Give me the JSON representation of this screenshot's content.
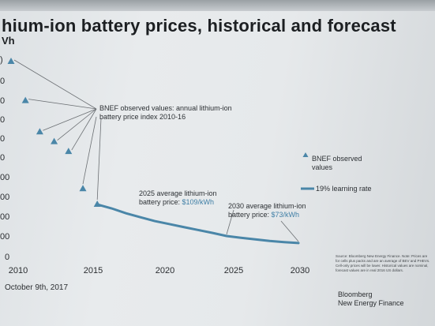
{
  "slide": {
    "title": "hium-ion battery prices, historical and forecast",
    "unit_label": "Vh",
    "date": "October 9th, 2017",
    "source_note": "Source: Bloomberg New Energy Finance. Note: Prices are for cells plus packs and are an average of BEV and PHEVs. Cell-only prices will be lower. Historical values are nominal, forecast values are in real 2016 US dollars.",
    "logo_line1": "Bloomberg",
    "logo_line2": "New Energy Finance"
  },
  "colors": {
    "series": "#4a86a8",
    "text": "#2a2d30",
    "leader": "#6b6f73"
  },
  "chart_data": {
    "type": "line",
    "title": "hium-ion battery prices, historical and forecast",
    "xlabel": "",
    "ylabel": "Vh",
    "x_ticks": [
      "2010",
      "2015",
      "2020",
      "2025",
      "2030"
    ],
    "y_ticks": [
      "0",
      "00",
      "00",
      "00",
      "00",
      "0",
      "0",
      "0",
      "0",
      "0",
      ")"
    ],
    "xlim": [
      2010,
      2030
    ],
    "ylim": [
      0,
      1000
    ],
    "grid": false,
    "legend_position": "right",
    "series": [
      {
        "name": "BNEF observed values",
        "type": "scatter",
        "marker": "triangle",
        "points": [
          {
            "x": 2010,
            "y": 1000
          },
          {
            "x": 2011,
            "y": 800
          },
          {
            "x": 2012,
            "y": 640
          },
          {
            "x": 2013,
            "y": 590
          },
          {
            "x": 2014,
            "y": 540
          },
          {
            "x": 2015,
            "y": 350
          },
          {
            "x": 2016,
            "y": 270
          }
        ]
      },
      {
        "name": "19% learning rate",
        "type": "line",
        "points": [
          {
            "x": 2016,
            "y": 270
          },
          {
            "x": 2017,
            "y": 250
          },
          {
            "x": 2018,
            "y": 225
          },
          {
            "x": 2019,
            "y": 205
          },
          {
            "x": 2020,
            "y": 185
          },
          {
            "x": 2021,
            "y": 170
          },
          {
            "x": 2022,
            "y": 155
          },
          {
            "x": 2023,
            "y": 140
          },
          {
            "x": 2024,
            "y": 125
          },
          {
            "x": 2025,
            "y": 109
          },
          {
            "x": 2026,
            "y": 100
          },
          {
            "x": 2027,
            "y": 92
          },
          {
            "x": 2028,
            "y": 84
          },
          {
            "x": 2029,
            "y": 78
          },
          {
            "x": 2030,
            "y": 73
          }
        ]
      }
    ],
    "annotations": {
      "observed_line1": "BNEF observed values: annual lithium-ion",
      "observed_line2": "battery price index 2010-16",
      "a2025_line1": "2025 average lithium-ion",
      "a2025_line2_prefix": "battery price: ",
      "a2025_value": "$109/kWh",
      "a2030_line1": "2030 average lithium-ion",
      "a2030_line2_prefix": "battery price: ",
      "a2030_value": "$73/kWh"
    },
    "legend": {
      "observed_line1": "BNEF observed",
      "observed_line2": "values",
      "learning": "19% learning rate"
    }
  }
}
